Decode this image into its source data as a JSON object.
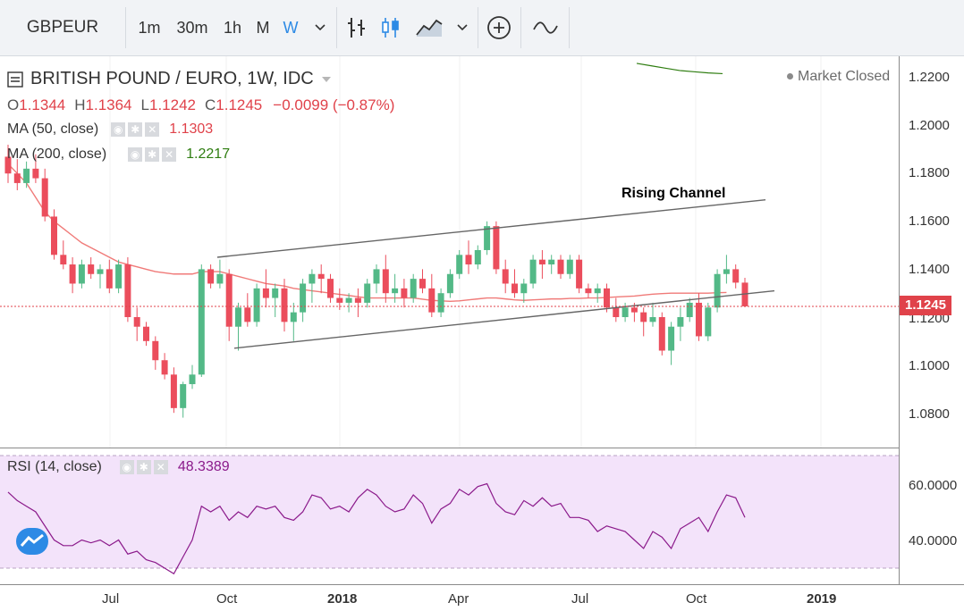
{
  "toolbar": {
    "symbol": "GBPEUR",
    "intervals": [
      "1m",
      "30m",
      "1h",
      "M",
      "W"
    ],
    "active_interval": "W",
    "icons": [
      "chevron-down-icon",
      "bar-chart-icon",
      "candlestick-icon",
      "area-chart-icon",
      "chevron-down-icon",
      "plus-circle-icon",
      "indicator-wave-icon"
    ]
  },
  "legend": {
    "title": "BRITISH POUND / EURO, 1W, IDC",
    "ohlc": {
      "o_label": "O",
      "o": "1.1344",
      "h_label": "H",
      "h": "1.1364",
      "l_label": "L",
      "l": "1.1242",
      "c_label": "C",
      "c": "1.1245",
      "change": "−0.0099 (−0.87%)"
    },
    "ma50": {
      "label": "MA (50, close)",
      "value": "1.1303"
    },
    "ma200": {
      "label": "MA (200, close)",
      "value": "1.2217"
    },
    "market_status": "Market Closed"
  },
  "annotation": {
    "text": "Rising Channel"
  },
  "price_axis": {
    "labels": [
      "1.2200",
      "1.2000",
      "1.1800",
      "1.1600",
      "1.1400",
      "1.1200",
      "1.1000",
      "1.0800"
    ],
    "last_price": "1.1245"
  },
  "rsi": {
    "label": "RSI (14, close)",
    "value": "48.3389",
    "axis_labels": [
      "60.0000",
      "40.0000"
    ]
  },
  "time_axis": {
    "labels": [
      "Jul",
      "Oct",
      "2018",
      "Apr",
      "Jul",
      "Oct",
      "2019"
    ]
  },
  "colors": {
    "up": "#53b987",
    "down": "#eb4d5c",
    "ma50": "#f07a78",
    "ma200": "#2e7d10",
    "rsi_line": "#8b1a8b",
    "rsi_band": "#f3e3fa",
    "accent": "#2d8ae5"
  },
  "chart_data": {
    "type": "candlestick",
    "title": "BRITISH POUND / EURO, 1W, IDC",
    "ylim": [
      1.07,
      1.225
    ],
    "candles_ohlc": [
      [
        1.187,
        1.192,
        1.176,
        1.18
      ],
      [
        1.18,
        1.186,
        1.173,
        1.176
      ],
      [
        1.176,
        1.185,
        1.174,
        1.182
      ],
      [
        1.182,
        1.188,
        1.176,
        1.178
      ],
      [
        1.178,
        1.182,
        1.16,
        1.162
      ],
      [
        1.162,
        1.165,
        1.144,
        1.146
      ],
      [
        1.146,
        1.152,
        1.14,
        1.142
      ],
      [
        1.142,
        1.145,
        1.13,
        1.134
      ],
      [
        1.134,
        1.144,
        1.132,
        1.142
      ],
      [
        1.142,
        1.145,
        1.136,
        1.138
      ],
      [
        1.138,
        1.142,
        1.132,
        1.14
      ],
      [
        1.14,
        1.144,
        1.13,
        1.132
      ],
      [
        1.132,
        1.144,
        1.13,
        1.142
      ],
      [
        1.142,
        1.145,
        1.118,
        1.12
      ],
      [
        1.12,
        1.124,
        1.11,
        1.116
      ],
      [
        1.116,
        1.118,
        1.108,
        1.11
      ],
      [
        1.11,
        1.112,
        1.098,
        1.102
      ],
      [
        1.102,
        1.105,
        1.094,
        1.096
      ],
      [
        1.096,
        1.099,
        1.08,
        1.082
      ],
      [
        1.082,
        1.093,
        1.078,
        1.092
      ],
      [
        1.092,
        1.1,
        1.09,
        1.096
      ],
      [
        1.096,
        1.142,
        1.095,
        1.14
      ],
      [
        1.14,
        1.142,
        1.132,
        1.134
      ],
      [
        1.134,
        1.144,
        1.132,
        1.138
      ],
      [
        1.138,
        1.14,
        1.11,
        1.116
      ],
      [
        1.116,
        1.126,
        1.106,
        1.124
      ],
      [
        1.124,
        1.13,
        1.116,
        1.118
      ],
      [
        1.118,
        1.134,
        1.116,
        1.132
      ],
      [
        1.132,
        1.14,
        1.124,
        1.128
      ],
      [
        1.128,
        1.134,
        1.12,
        1.132
      ],
      [
        1.132,
        1.136,
        1.114,
        1.118
      ],
      [
        1.118,
        1.126,
        1.11,
        1.122
      ],
      [
        1.122,
        1.136,
        1.118,
        1.134
      ],
      [
        1.134,
        1.14,
        1.126,
        1.138
      ],
      [
        1.138,
        1.142,
        1.13,
        1.136
      ],
      [
        1.136,
        1.138,
        1.126,
        1.128
      ],
      [
        1.128,
        1.132,
        1.123,
        1.126
      ],
      [
        1.126,
        1.13,
        1.122,
        1.128
      ],
      [
        1.128,
        1.132,
        1.12,
        1.126
      ],
      [
        1.126,
        1.136,
        1.124,
        1.134
      ],
      [
        1.134,
        1.142,
        1.13,
        1.14
      ],
      [
        1.14,
        1.146,
        1.126,
        1.13
      ],
      [
        1.13,
        1.138,
        1.126,
        1.132
      ],
      [
        1.132,
        1.136,
        1.124,
        1.128
      ],
      [
        1.128,
        1.138,
        1.126,
        1.136
      ],
      [
        1.136,
        1.14,
        1.13,
        1.132
      ],
      [
        1.132,
        1.138,
        1.12,
        1.122
      ],
      [
        1.122,
        1.132,
        1.12,
        1.13
      ],
      [
        1.13,
        1.14,
        1.128,
        1.138
      ],
      [
        1.138,
        1.148,
        1.136,
        1.146
      ],
      [
        1.146,
        1.152,
        1.138,
        1.142
      ],
      [
        1.142,
        1.15,
        1.14,
        1.148
      ],
      [
        1.148,
        1.16,
        1.146,
        1.158
      ],
      [
        1.158,
        1.16,
        1.138,
        1.14
      ],
      [
        1.14,
        1.144,
        1.13,
        1.134
      ],
      [
        1.134,
        1.14,
        1.128,
        1.13
      ],
      [
        1.13,
        1.136,
        1.126,
        1.134
      ],
      [
        1.134,
        1.146,
        1.132,
        1.144
      ],
      [
        1.144,
        1.148,
        1.136,
        1.142
      ],
      [
        1.142,
        1.146,
        1.138,
        1.144
      ],
      [
        1.144,
        1.146,
        1.136,
        1.138
      ],
      [
        1.138,
        1.146,
        1.136,
        1.144
      ],
      [
        1.144,
        1.146,
        1.13,
        1.132
      ],
      [
        1.132,
        1.134,
        1.128,
        1.13
      ],
      [
        1.13,
        1.134,
        1.126,
        1.132
      ],
      [
        1.132,
        1.134,
        1.122,
        1.124
      ],
      [
        1.124,
        1.128,
        1.118,
        1.12
      ],
      [
        1.12,
        1.126,
        1.118,
        1.124
      ],
      [
        1.124,
        1.126,
        1.118,
        1.122
      ],
      [
        1.122,
        1.124,
        1.112,
        1.118
      ],
      [
        1.118,
        1.126,
        1.116,
        1.12
      ],
      [
        1.12,
        1.122,
        1.104,
        1.106
      ],
      [
        1.106,
        1.118,
        1.1,
        1.116
      ],
      [
        1.116,
        1.124,
        1.11,
        1.12
      ],
      [
        1.12,
        1.128,
        1.118,
        1.126
      ],
      [
        1.126,
        1.13,
        1.11,
        1.112
      ],
      [
        1.112,
        1.126,
        1.11,
        1.124
      ],
      [
        1.124,
        1.14,
        1.122,
        1.138
      ],
      [
        1.138,
        1.146,
        1.134,
        1.14
      ],
      [
        1.14,
        1.142,
        1.132,
        1.1344
      ],
      [
        1.1344,
        1.1364,
        1.1242,
        1.1245
      ]
    ],
    "ma50": [
      1.184,
      1.18,
      1.176,
      1.17,
      1.164,
      1.16,
      1.157,
      1.154,
      1.151,
      1.149,
      1.147,
      1.145,
      1.143,
      1.142,
      1.141,
      1.14,
      1.139,
      1.1385,
      1.138,
      1.138,
      1.138,
      1.139,
      1.139,
      1.139,
      1.138,
      1.137,
      1.136,
      1.135,
      1.134,
      1.1335,
      1.133,
      1.132,
      1.1315,
      1.131,
      1.1305,
      1.13,
      1.1295,
      1.129,
      1.1285,
      1.128,
      1.128,
      1.128,
      1.128,
      1.128,
      1.128,
      1.1275,
      1.127,
      1.1268,
      1.1266,
      1.1268,
      1.1272,
      1.1276,
      1.128,
      1.128,
      1.1276,
      1.1272,
      1.127,
      1.1272,
      1.1274,
      1.1276,
      1.1276,
      1.1278,
      1.1278,
      1.128,
      1.128,
      1.1282,
      1.1284,
      1.1286,
      1.1288,
      1.1292,
      1.1296,
      1.1298,
      1.13,
      1.13,
      1.13,
      1.13,
      1.13,
      1.1302,
      1.1303
    ],
    "ma200_visible": [
      1.226,
      1.225,
      1.224,
      1.223,
      1.2225,
      1.222,
      1.2217
    ],
    "trendlines": [
      {
        "name": "upper",
        "from": [
          1.145
        ],
        "to": [
          1.169
        ]
      },
      {
        "name": "lower",
        "from": [
          1.107
        ],
        "to": [
          1.131
        ]
      }
    ],
    "rsi_values": [
      57,
      54,
      52,
      50,
      45,
      40,
      38,
      38,
      40,
      39,
      40,
      38,
      40,
      35,
      36,
      33,
      32,
      30,
      28,
      34,
      40,
      52,
      50,
      52,
      47,
      50,
      48,
      52,
      51,
      52,
      48,
      47,
      50,
      56,
      55,
      51,
      52,
      50,
      55,
      58,
      56,
      52,
      50,
      51,
      56,
      53,
      46,
      51,
      53,
      58,
      56,
      59,
      60,
      53,
      50,
      49,
      54,
      52,
      55,
      52,
      53,
      48,
      48,
      47,
      43,
      45,
      44,
      43,
      40,
      37,
      43,
      41,
      37,
      44,
      46,
      48,
      43,
      50,
      56,
      55,
      48
    ],
    "rsi_ylim": [
      25,
      70
    ],
    "rsi_band": [
      30,
      70
    ],
    "x_ticks": [
      "Jul",
      "Oct",
      "2018",
      "Apr",
      "Jul",
      "Oct",
      "2019"
    ]
  }
}
